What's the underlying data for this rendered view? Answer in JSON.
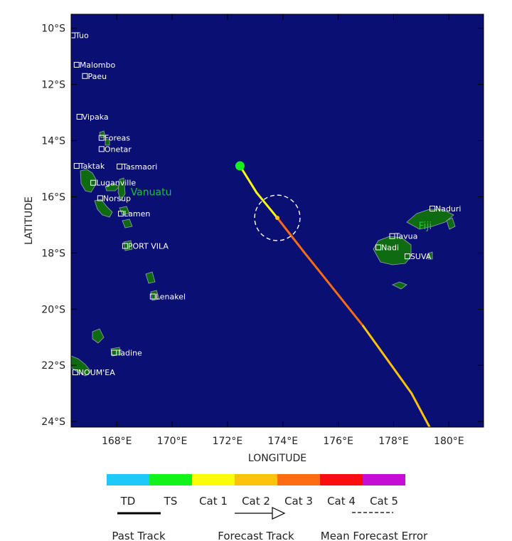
{
  "map": {
    "lon_min": 166.35,
    "lon_max": 181.25,
    "lat_min": -24.2,
    "lat_max": -9.5,
    "x_ticks": [
      168,
      170,
      172,
      174,
      176,
      178,
      180
    ],
    "x_tick_labels": [
      "168°E",
      "170°E",
      "172°E",
      "174°E",
      "176°E",
      "178°E",
      "180°E"
    ],
    "y_ticks": [
      -10,
      -12,
      -14,
      -16,
      -18,
      -20,
      -22,
      -24
    ],
    "y_tick_labels": [
      "10°S",
      "12°S",
      "14°S",
      "16°S",
      "18°S",
      "20°S",
      "22°S",
      "24°S"
    ],
    "xlabel": "LONGITUDE",
    "ylabel": "LATITUDE",
    "colors": {
      "ocean": "#0a0f73",
      "land": "#0f6b12",
      "coast": "#9aa0b0",
      "border": "#ffffff",
      "station_text": "#ffffff",
      "country_text": "#22c32a"
    }
  },
  "stations": [
    {
      "name": "Tuo",
      "lon": 166.4,
      "lat": -10.25
    },
    {
      "name": "Malombo",
      "lon": 166.55,
      "lat": -11.3
    },
    {
      "name": "Paeu",
      "lon": 166.85,
      "lat": -11.7
    },
    {
      "name": "Vipaka",
      "lon": 166.65,
      "lat": -13.15
    },
    {
      "name": "Foreas",
      "lon": 167.45,
      "lat": -13.9
    },
    {
      "name": "Onetar",
      "lon": 167.45,
      "lat": -14.3
    },
    {
      "name": "Taktak",
      "lon": 166.55,
      "lat": -14.9
    },
    {
      "name": "Tasmaori",
      "lon": 168.1,
      "lat": -14.92
    },
    {
      "name": "Luganville",
      "lon": 167.15,
      "lat": -15.5
    },
    {
      "name": "Norsup",
      "lon": 167.4,
      "lat": -16.05
    },
    {
      "name": "Lamen",
      "lon": 168.15,
      "lat": -16.6
    },
    {
      "name": "PORT VILA",
      "lon": 168.3,
      "lat": -17.75
    },
    {
      "name": "Lenakel",
      "lon": 169.3,
      "lat": -19.55
    },
    {
      "name": "Tadine",
      "lon": 167.9,
      "lat": -21.55
    },
    {
      "name": "NOUM'EA",
      "lon": 166.5,
      "lat": -22.25
    },
    {
      "name": "Naduri",
      "lon": 179.4,
      "lat": -16.42
    },
    {
      "name": "Tavua",
      "lon": 177.95,
      "lat": -17.4
    },
    {
      "name": "Nadi",
      "lon": 177.45,
      "lat": -17.8
    },
    {
      "name": "SUVA",
      "lon": 178.5,
      "lat": -18.12
    }
  ],
  "countries": [
    {
      "name": "Vanuatu",
      "lon": 168.5,
      "lat": -15.95
    },
    {
      "name": "Fiji",
      "lon": 178.9,
      "lat": -17.15
    }
  ],
  "track": {
    "current_position": {
      "lon": 172.45,
      "lat": -14.9,
      "category": "TS"
    },
    "forecast_points": [
      {
        "lon": 172.45,
        "lat": -14.9,
        "category": "TS"
      },
      {
        "lon": 173.05,
        "lat": -15.85,
        "category": "Cat 1"
      },
      {
        "lon": 173.8,
        "lat": -16.75,
        "category": "Cat 1"
      },
      {
        "lon": 174.75,
        "lat": -17.95,
        "category": "Cat 3"
      },
      {
        "lon": 176.9,
        "lat": -20.6,
        "category": "Cat 3"
      },
      {
        "lon": 178.65,
        "lat": -23.0,
        "category": "Cat 2"
      },
      {
        "lon": 179.3,
        "lat": -24.2,
        "category": "Cat 2"
      }
    ],
    "error_circle": {
      "lon": 173.8,
      "lat": -16.75,
      "radius_deg": 0.82
    }
  },
  "legend": {
    "categories": [
      {
        "label": "TD",
        "color": "#1ec8f8"
      },
      {
        "label": "TS",
        "color": "#14f21c"
      },
      {
        "label": "Cat 1",
        "color": "#fbfb0a"
      },
      {
        "label": "Cat 2",
        "color": "#fcc20c"
      },
      {
        "label": "Cat 3",
        "color": "#fd6c12"
      },
      {
        "label": "Cat 4",
        "color": "#fc0d0d"
      },
      {
        "label": "Cat 5",
        "color": "#c50ed4"
      }
    ],
    "past_track_label": "Past Track",
    "forecast_track_label": "Forecast Track",
    "error_label": "Mean Forecast Error"
  }
}
